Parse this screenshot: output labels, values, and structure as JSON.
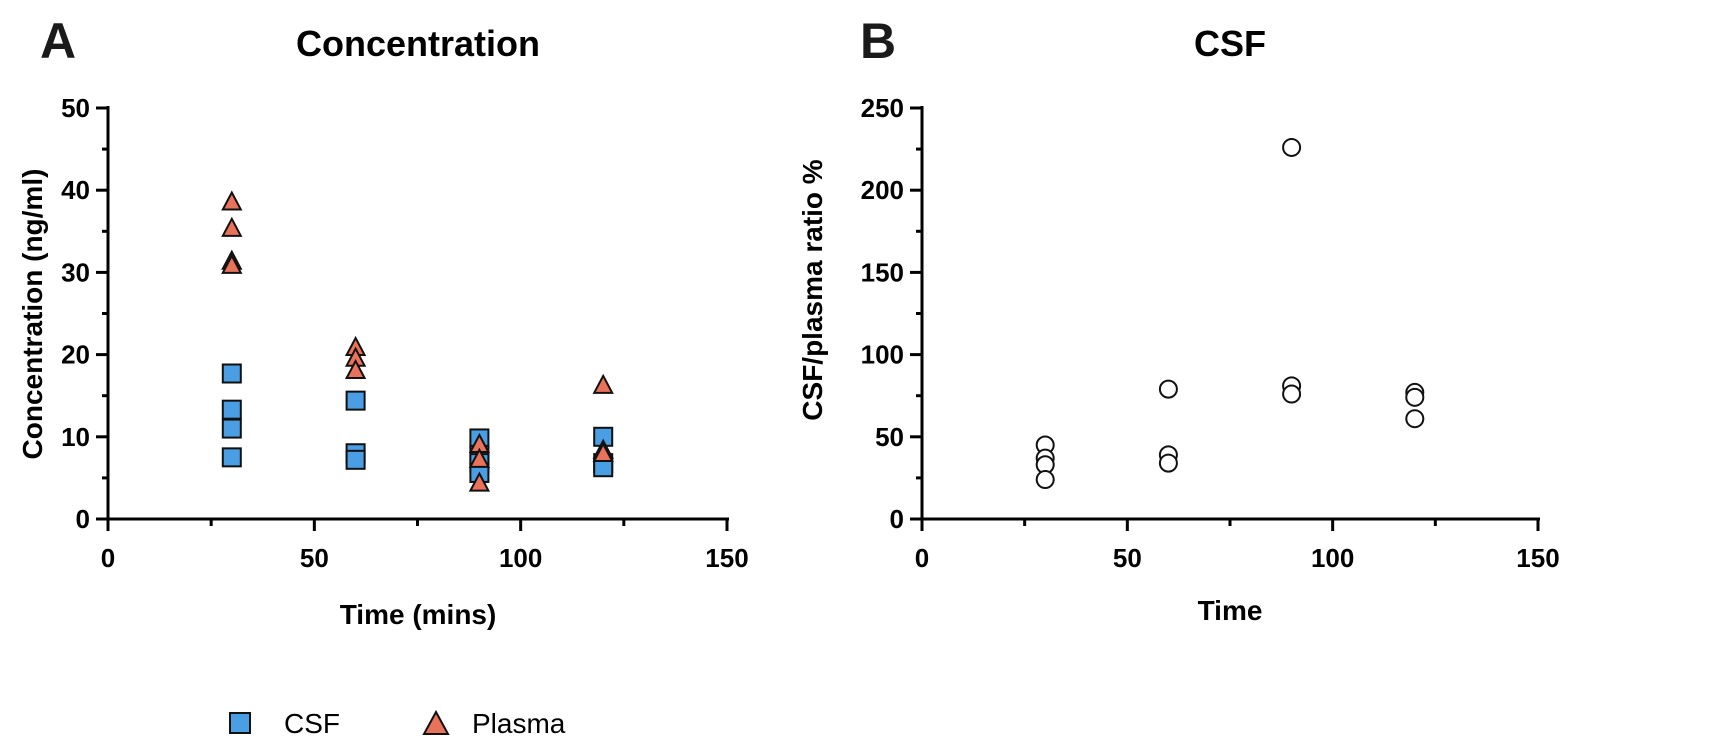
{
  "colors": {
    "csf": "#4a9ee3",
    "plasma": "#e8735a",
    "ratio": "#ffffff",
    "outline": "#111111"
  },
  "chart_data": [
    {
      "panel": "A",
      "type": "scatter",
      "title": "Concentration",
      "xlabel": "Time (mins)",
      "ylabel": "Concentration (ng/ml)",
      "xlim": [
        0,
        150
      ],
      "ylim": [
        0,
        50
      ],
      "xticks": [
        0,
        50,
        100,
        150
      ],
      "yticks": [
        0,
        10,
        20,
        30,
        40,
        50
      ],
      "legend": "bottom",
      "series": [
        {
          "name": "CSF",
          "marker": "square",
          "x": [
            30,
            30,
            30,
            30,
            60,
            60,
            60,
            90,
            90,
            90,
            90,
            120,
            120,
            120
          ],
          "y": [
            17.7,
            13.3,
            11,
            7.5,
            14.4,
            8,
            7.2,
            9.8,
            7.8,
            6.8,
            5.6,
            10,
            6.8,
            6.3
          ]
        },
        {
          "name": "Plasma",
          "marker": "triangle",
          "x": [
            30,
            30,
            30,
            30,
            60,
            60,
            60,
            90,
            90,
            90,
            120,
            120,
            120
          ],
          "y": [
            38.5,
            35.3,
            31.3,
            30.8,
            20.8,
            19.5,
            18,
            9,
            7.2,
            4.3,
            16.2,
            8.3,
            7.9
          ]
        }
      ]
    },
    {
      "panel": "B",
      "type": "scatter",
      "title": "CSF",
      "xlabel": "Time",
      "ylabel": "CSF/plasma ratio %",
      "xlim": [
        0,
        150
      ],
      "ylim": [
        0,
        250
      ],
      "xticks": [
        0,
        50,
        100,
        150
      ],
      "yticks": [
        0,
        50,
        100,
        150,
        200,
        250
      ],
      "series": [
        {
          "marker": "circle",
          "x": [
            30,
            30,
            30,
            30,
            60,
            60,
            60,
            90,
            90,
            90,
            120,
            120,
            120
          ],
          "y": [
            45,
            37,
            33,
            24,
            79,
            39,
            34,
            226,
            81,
            76,
            77,
            74,
            61
          ]
        }
      ]
    }
  ]
}
